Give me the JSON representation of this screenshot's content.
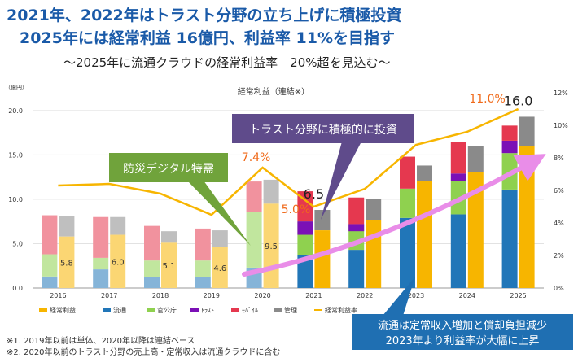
{
  "headline": {
    "line1": "2021年、2022年はトラスト分野の立ち上げに積極投資",
    "line2": "2025年には経常利益 16億円、利益率 11%を目指す",
    "subtitle": "～2025年に流通クラウドの経常利益率　20%超を見込む～"
  },
  "chart_data": {
    "type": "bar",
    "title": "経常利益（連結※）",
    "left_axis_unit": "（億円）",
    "categories": [
      "2016",
      "2017",
      "2018",
      "2019",
      "2020",
      "2021",
      "2022",
      "2023",
      "2024",
      "2025"
    ],
    "ylim_left": [
      0,
      22
    ],
    "left_ticks": [
      "0.0",
      "5.0",
      "10.0",
      "15.0",
      "20.0"
    ],
    "left_tick_values": [
      0,
      5,
      10,
      15,
      20
    ],
    "ylim_right": [
      0,
      12
    ],
    "right_ticks": [
      "0%",
      "2%",
      "4%",
      "6%",
      "8%",
      "10%",
      "12%"
    ],
    "right_tick_values": [
      0,
      2,
      4,
      6,
      8,
      10,
      12
    ],
    "segment_series": [
      {
        "name": "流通",
        "color": "#2176b8",
        "values": [
          1.3,
          2.1,
          1.2,
          1.2,
          2.3,
          3.7,
          4.3,
          7.9,
          8.3,
          11.1
        ]
      },
      {
        "name": "官公庁",
        "color": "#8fd14f",
        "values": [
          2.5,
          1.3,
          1.9,
          1.9,
          6.3,
          3.8,
          2.9,
          3.3,
          3.8,
          4.1
        ]
      },
      {
        "name": "ﾄﾗｽﾄ",
        "color": "#7b10b6",
        "values": [
          0,
          0,
          0,
          0,
          0,
          -1.5,
          -0.8,
          0,
          0.8,
          1.4
        ]
      },
      {
        "name": "ﾓﾊﾞｲﾙ",
        "color": "#e5384f",
        "values": [
          4.4,
          4.6,
          3.9,
          3.6,
          3.4,
          3.4,
          3.0,
          3.6,
          3.6,
          1.7
        ]
      },
      {
        "name": "管理",
        "color": "#8a8a8a",
        "values": [
          0,
          0,
          0,
          0,
          0,
          0,
          0,
          0,
          0,
          0
        ]
      }
    ],
    "light_color_rule": "2016-2020 segments drawn in lighter tints",
    "management_cost": [
      2.3,
      2.0,
      1.3,
      1.9,
      2.7,
      2.3,
      2.3,
      1.7,
      2.9,
      3.3
    ],
    "management_color": "#8a8a8a",
    "profit": {
      "name": "経常利益",
      "color": "#f7b500",
      "values": [
        5.8,
        6.0,
        5.1,
        4.6,
        9.5,
        6.5,
        7.7,
        12.1,
        13.1,
        16.0
      ]
    },
    "profit_labels": [
      "5.8",
      "6.0",
      "5.1",
      "4.6",
      "9.5",
      "6.5",
      "",
      "",
      "",
      "16.0"
    ],
    "margin": {
      "name": "経常利益率",
      "color": "#f7b500",
      "values": [
        6.3,
        6.4,
        5.8,
        4.5,
        7.4,
        5.0,
        6.1,
        8.8,
        9.6,
        11.0
      ]
    },
    "margin_labels": [
      "",
      "",
      "",
      "",
      "7.4%",
      "5.0%",
      "",
      "",
      "",
      "11.0%"
    ],
    "legend": [
      "経常利益",
      "流通",
      "官公庁",
      "ﾄﾗｽﾄ",
      "ﾓﾊﾞｲﾙ",
      "管理",
      "経常利益率"
    ]
  },
  "callouts": {
    "bousai": "防災デジタル特需",
    "trust": "トラスト分野に積極的に投資",
    "ryutsu_line1": "流通は定常収入増加と償却負担減少",
    "ryutsu_line2": "2023年より利益率が大幅に上昇"
  },
  "notes": {
    "n1": "※1.  2019年以前は単体、2020年以降は連結ベース",
    "n2": "※2.  2020年以前のトラスト分野の売上高・定常収入は流通クラウドに含む"
  },
  "colors": {
    "title": "#1a5aa8",
    "callout_green": "#70a33b",
    "callout_purple": "#5f4b8b",
    "callout_blue": "#1f6fb2",
    "arrow": "#e98de8",
    "orange_label": "#f06a1a"
  }
}
